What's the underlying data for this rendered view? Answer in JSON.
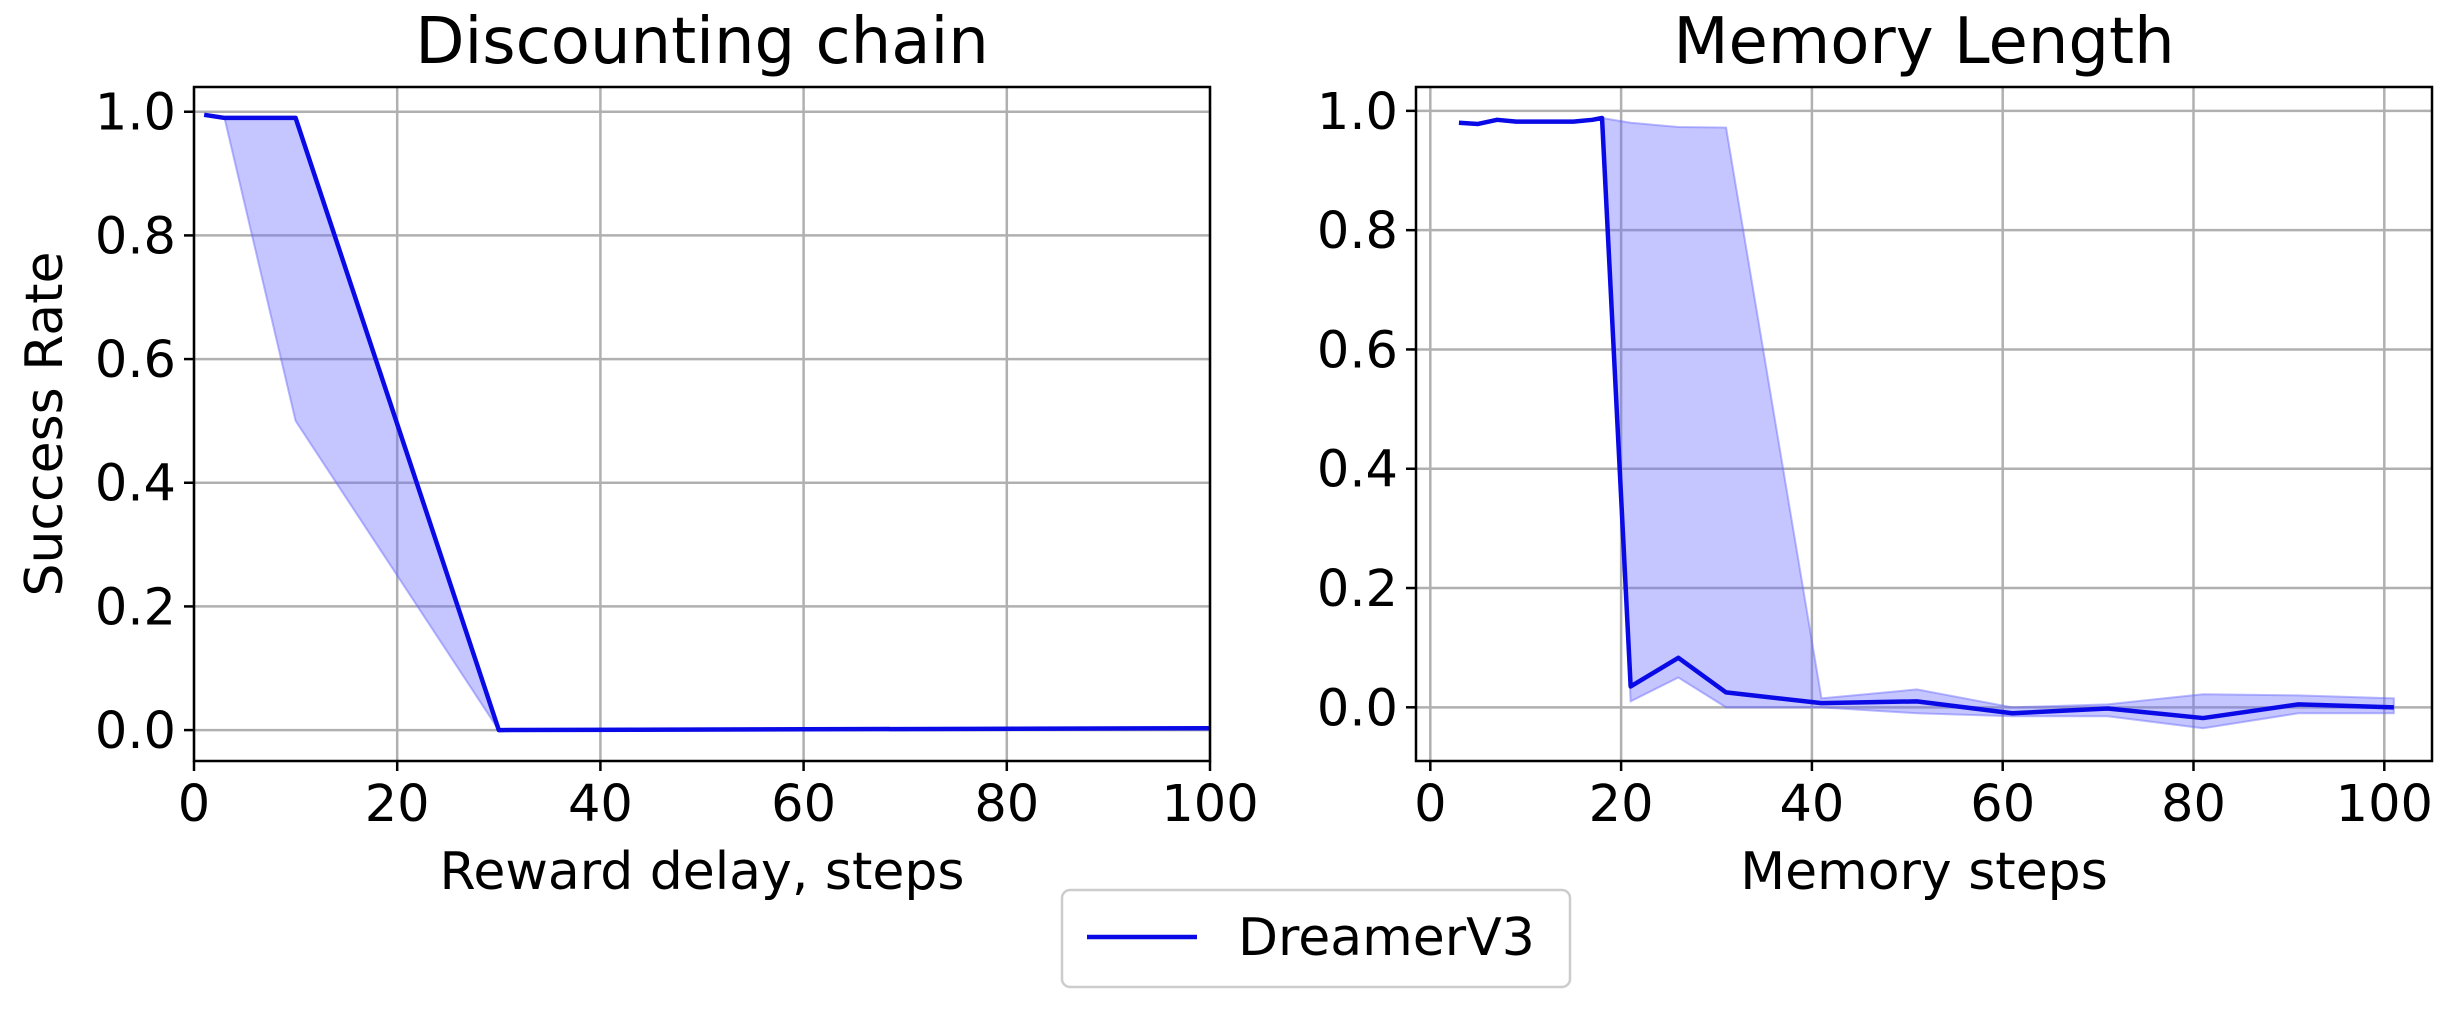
{
  "legend": {
    "label": "DreamerV3",
    "color": "#0a0ae6",
    "band_color": "#6666ff"
  },
  "chart_data": [
    {
      "type": "line",
      "title": "Discounting  chain",
      "xlabel": "Reward delay, steps",
      "ylabel": "Success Rate",
      "xlim": [
        0,
        100
      ],
      "ylim": [
        -0.05,
        1.04
      ],
      "xticks": [
        0,
        20,
        40,
        60,
        80,
        100
      ],
      "yticks": [
        0.0,
        0.2,
        0.4,
        0.6,
        0.8,
        1.0
      ],
      "xtick_labels": [
        "0",
        "20",
        "40",
        "60",
        "80",
        "100"
      ],
      "ytick_labels": [
        "0.0",
        "0.2",
        "0.4",
        "0.6",
        "0.8",
        "1.0"
      ],
      "grid": true,
      "series": [
        {
          "name": "DreamerV3",
          "x": [
            1,
            3,
            10,
            30,
            100
          ],
          "y": [
            0.995,
            0.99,
            0.99,
            0.0,
            0.003
          ],
          "lower": [
            0.995,
            0.99,
            0.5,
            0.0,
            0.003
          ],
          "upper": [
            0.995,
            0.99,
            0.99,
            0.0,
            0.003
          ]
        }
      ]
    },
    {
      "type": "line",
      "title": "Memory Length",
      "xlabel": "Memory steps",
      "ylabel": "",
      "xlim": [
        -1.5,
        105
      ],
      "ylim": [
        -0.09,
        1.04
      ],
      "xticks": [
        0,
        20,
        40,
        60,
        80,
        100
      ],
      "yticks": [
        0.0,
        0.2,
        0.4,
        0.6,
        0.8,
        1.0
      ],
      "xtick_labels": [
        "0",
        "20",
        "40",
        "60",
        "80",
        "100"
      ],
      "ytick_labels": [
        "0.0",
        "0.2",
        "0.4",
        "0.6",
        "0.8",
        "1.0"
      ],
      "grid": true,
      "series": [
        {
          "name": "DreamerV3",
          "x": [
            3,
            5,
            7,
            9,
            11,
            13,
            15,
            17,
            18,
            21,
            26,
            31,
            41,
            51,
            61,
            71,
            81,
            91,
            101
          ],
          "y": [
            0.98,
            0.978,
            0.985,
            0.982,
            0.982,
            0.982,
            0.982,
            0.985,
            0.988,
            0.035,
            0.083,
            0.025,
            0.007,
            0.01,
            -0.01,
            -0.002,
            -0.018,
            0.005,
            0.0
          ],
          "lower": [
            0.98,
            0.978,
            0.985,
            0.982,
            0.982,
            0.982,
            0.982,
            0.985,
            0.988,
            0.01,
            0.05,
            0.0,
            0.0,
            -0.01,
            -0.015,
            -0.015,
            -0.035,
            -0.01,
            -0.01
          ],
          "upper": [
            0.98,
            0.978,
            0.985,
            0.982,
            0.982,
            0.982,
            0.982,
            0.985,
            0.988,
            0.98,
            0.973,
            0.972,
            0.015,
            0.03,
            0.0,
            0.005,
            0.022,
            0.02,
            0.015
          ]
        }
      ]
    }
  ]
}
